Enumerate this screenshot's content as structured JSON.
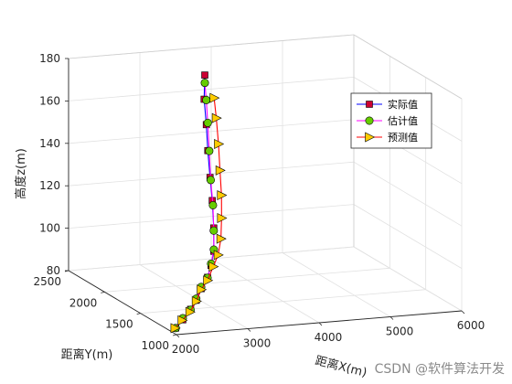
{
  "chart_data": {
    "type": "line3d",
    "title": "",
    "xlabel": "距离X(m)",
    "ylabel": "距离Y(m)",
    "zlabel": "高度z(m)",
    "xlim": [
      2000,
      6000
    ],
    "ylim": [
      1000,
      2500
    ],
    "zlim": [
      80,
      180
    ],
    "xticks": [
      "2000",
      "3000",
      "4000",
      "5000",
      "6000"
    ],
    "yticks": [
      "1000",
      "1500",
      "2000",
      "2500"
    ],
    "zticks": [
      "80",
      "100",
      "120",
      "140",
      "160",
      "180"
    ],
    "grid": true,
    "legend_position": "top-right",
    "series": [
      {
        "name": "实际值",
        "color": "#0000ff",
        "marker": "square",
        "marker_color": "#cc0033",
        "x": [
          2040,
          2210,
          2390,
          2560,
          2730,
          2910,
          3070,
          3220,
          3350,
          3460,
          3560,
          3650,
          3730,
          3790,
          3860
        ],
        "y": [
          1050,
          1120,
          1190,
          1280,
          1380,
          1470,
          1580,
          1690,
          1820,
          1950,
          2080,
          2200,
          2300,
          2390,
          2450
        ],
        "z": [
          82,
          84,
          87,
          89,
          92,
          95,
          98,
          102,
          110,
          120,
          128,
          138,
          148,
          158,
          168
        ]
      },
      {
        "name": "估计值",
        "color": "#ff00ff",
        "marker": "circle",
        "marker_color": "#66cc00",
        "x": [
          2040,
          2200,
          2380,
          2550,
          2720,
          2900,
          3060,
          3210,
          3340,
          3460,
          3560,
          3660,
          3740,
          3800,
          3830
        ],
        "y": [
          1050,
          1110,
          1180,
          1270,
          1370,
          1460,
          1570,
          1680,
          1810,
          1940,
          2070,
          2190,
          2290,
          2370,
          2420
        ],
        "z": [
          82,
          85,
          87,
          90,
          93,
          95,
          99,
          103,
          109,
          118,
          127,
          138,
          149,
          158,
          165
        ]
      },
      {
        "name": "预测值",
        "color": "#ff0000",
        "marker": "triangle-right",
        "marker_color": "#ffcc00",
        "x": [
          2030,
          2190,
          2370,
          2540,
          2710,
          2890,
          3070,
          3240,
          3390,
          3520,
          3640,
          3740,
          3830,
          3900,
          3940
        ],
        "y": [
          1050,
          1110,
          1180,
          1260,
          1360,
          1450,
          1550,
          1650,
          1760,
          1880,
          2000,
          2120,
          2230,
          2330,
          2400
        ],
        "z": [
          82,
          84,
          86,
          89,
          92,
          94,
          98,
          101,
          106,
          113,
          121,
          130,
          140,
          150,
          158
        ]
      }
    ]
  },
  "watermark": "CSDN @软件算法开发"
}
